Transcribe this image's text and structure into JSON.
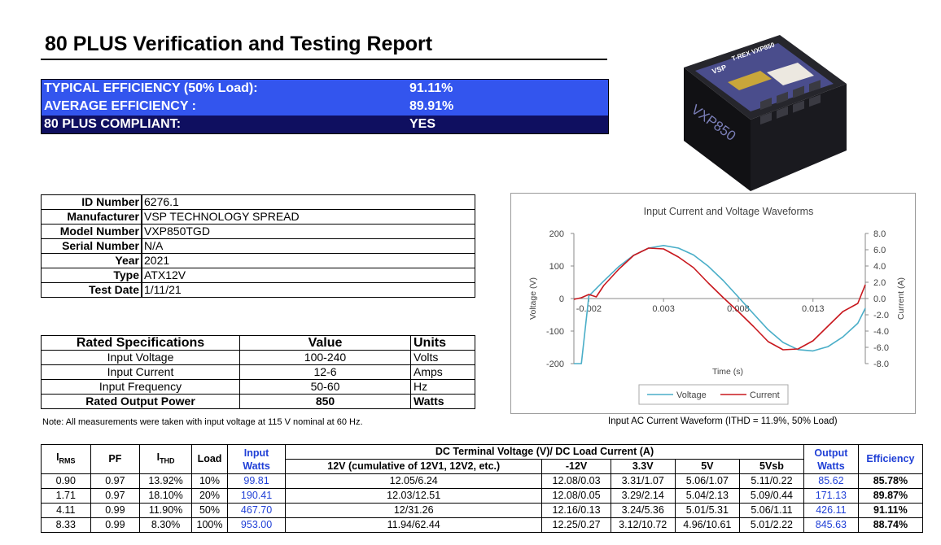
{
  "report": {
    "title": "80 PLUS Verification and Testing Report"
  },
  "summary": {
    "typical_label": "TYPICAL EFFICIENCY (50% Load):",
    "typical_value": "91.11%",
    "average_label": "AVERAGE EFFICIENCY :",
    "average_value": "89.91%",
    "compliant_label": "80 PLUS COMPLIANT:",
    "compliant_value": "YES"
  },
  "product": {
    "label_brand": "VSP",
    "label_model": "T-REX VXP850",
    "side_text": "VXP850",
    "colors": {
      "body": "#1a1a1f",
      "label": "#4a4d8c",
      "sticker": "#ece8e0"
    }
  },
  "identity": {
    "id_label": "ID Number",
    "id_value": "6276.1",
    "manufacturer_label": "Manufacturer",
    "manufacturer_value": "VSP TECHNOLOGY SPREAD",
    "model_label": "Model Number",
    "model_value": "VXP850TGD",
    "serial_label": "Serial Number",
    "serial_value": "N/A",
    "year_label": "Year",
    "year_value": "2021",
    "type_label": "Type",
    "type_value": "ATX12V",
    "date_label": "Test Date",
    "date_value": "1/11/21"
  },
  "specs": {
    "headers": {
      "spec": "Rated Specifications",
      "value": "Value",
      "units": "Units"
    },
    "rows": [
      {
        "spec": "Input Voltage",
        "value": "100-240",
        "units": "Volts"
      },
      {
        "spec": "Input Current",
        "value": "12-6",
        "units": "Amps"
      },
      {
        "spec": "Input Frequency",
        "value": "50-60",
        "units": "Hz"
      },
      {
        "spec": "Rated Output Power",
        "value": "850",
        "units": "Watts"
      }
    ]
  },
  "note": "Note: All measurements were taken with input voltage at 115 V nominal at 60 Hz.",
  "chart_caption": "Input AC Current Waveform (ITHD = 11.9%, 50% Load)",
  "chart_data": {
    "type": "line",
    "title": "Input Current and Voltage Waveforms",
    "xlabel": "Time (s)",
    "ylabel": "Voltage (V)",
    "y2label": "Current (A)",
    "xlim": [
      -0.003,
      0.0165
    ],
    "ylim": [
      -200,
      200
    ],
    "y2lim": [
      -8,
      8
    ],
    "xticks": [
      -0.002,
      0.003,
      0.008,
      0.013
    ],
    "xtick_labels": [
      "-0.002",
      "0.003",
      "0.008",
      "0.013"
    ],
    "yticks": [
      200,
      100,
      0,
      -100,
      -200
    ],
    "ytick_labels": [
      "200",
      "100",
      "0",
      "-100",
      "-200"
    ],
    "y2ticks": [
      8,
      6,
      4,
      2,
      0,
      -2,
      -4,
      -6,
      -8
    ],
    "y2tick_labels": [
      "8.0",
      "6.0",
      "4.0",
      "2.0",
      "0.0",
      "-2.0",
      "-4.0",
      "-6.0",
      "-8.0"
    ],
    "legend_position": "bottom",
    "series": [
      {
        "name": "Voltage",
        "color": "#4aaec8",
        "axis": "left",
        "x": [
          -0.003,
          -0.0025,
          -0.002,
          -0.001,
          0.0,
          0.001,
          0.002,
          0.003,
          0.004,
          0.005,
          0.006,
          0.007,
          0.008,
          0.009,
          0.01,
          0.011,
          0.012,
          0.013,
          0.014,
          0.015,
          0.016,
          0.0165
        ],
        "y": [
          -200,
          -200,
          8,
          54,
          98,
          133,
          155,
          163,
          155,
          134,
          99,
          55,
          5,
          -46,
          -96,
          -135,
          -157,
          -161,
          -148,
          -118,
          -76,
          -30
        ]
      },
      {
        "name": "Current",
        "color": "#c8181e",
        "axis": "right",
        "x": [
          -0.003,
          -0.0025,
          -0.002,
          -0.0015,
          -0.001,
          0.0,
          0.001,
          0.002,
          0.003,
          0.004,
          0.005,
          0.006,
          0.007,
          0.008,
          0.009,
          0.01,
          0.011,
          0.012,
          0.013,
          0.014,
          0.015,
          0.016,
          0.0165
        ],
        "y": [
          -0.1,
          0.1,
          0.5,
          0.2,
          1.6,
          3.6,
          5.3,
          6.2,
          6.1,
          5.1,
          3.8,
          1.9,
          0.1,
          -1.6,
          -3.4,
          -5.3,
          -6.3,
          -6.2,
          -5.2,
          -3.4,
          -1.6,
          -0.6,
          1.7
        ]
      }
    ]
  },
  "results": {
    "headers": {
      "irms": "I",
      "irms_sub": "RMS",
      "pf": "PF",
      "ithd": "I",
      "ithd_sub": "THD",
      "load": "Load",
      "input_watts": "Input Watts",
      "dc_group": "DC Terminal Voltage (V)/ DC Load Current (A)",
      "v12": "12V (cumulative of 12V1, 12V2, etc.)",
      "vm12": "-12V",
      "v33": "3.3V",
      "v5": "5V",
      "v5sb": "5Vsb",
      "output_watts": "Output Watts",
      "efficiency": "Efficiency"
    },
    "rows": [
      {
        "irms": "0.90",
        "pf": "0.97",
        "ithd": "13.92%",
        "load": "10%",
        "input": "99.81",
        "v12": "12.05/6.24",
        "vm12": "12.08/0.03",
        "v33": "3.31/1.07",
        "v5": "5.06/1.07",
        "v5sb": "5.11/0.22",
        "output": "85.62",
        "eff": "85.78%"
      },
      {
        "irms": "1.71",
        "pf": "0.97",
        "ithd": "18.10%",
        "load": "20%",
        "input": "190.41",
        "v12": "12.03/12.51",
        "vm12": "12.08/0.05",
        "v33": "3.29/2.14",
        "v5": "5.04/2.13",
        "v5sb": "5.09/0.44",
        "output": "171.13",
        "eff": "89.87%"
      },
      {
        "irms": "4.11",
        "pf": "0.99",
        "ithd": "11.90%",
        "load": "50%",
        "input": "467.70",
        "v12": "12/31.26",
        "vm12": "12.16/0.13",
        "v33": "3.24/5.36",
        "v5": "5.01/5.31",
        "v5sb": "5.06/1.11",
        "output": "426.11",
        "eff": "91.11%"
      },
      {
        "irms": "8.33",
        "pf": "0.99",
        "ithd": "8.30%",
        "load": "100%",
        "input": "953.00",
        "v12": "11.94/62.44",
        "vm12": "12.25/0.27",
        "v33": "3.12/10.72",
        "v5": "4.96/10.61",
        "v5sb": "5.01/2.22",
        "output": "845.63",
        "eff": "88.74%"
      }
    ]
  }
}
